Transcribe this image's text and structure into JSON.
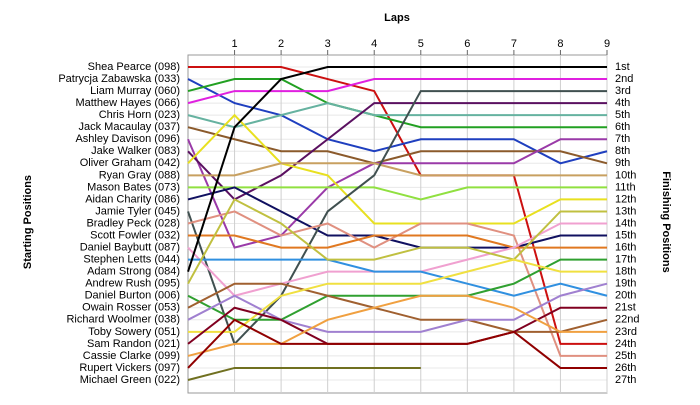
{
  "chart_data": {
    "type": "bump",
    "title": "Laps",
    "y_label_left": "Starting Positions",
    "y_label_right": "Finishing Positions",
    "x": [
      0,
      1,
      2,
      3,
      4,
      5,
      6,
      7,
      8,
      9
    ],
    "xlim": [
      0,
      9
    ],
    "xticks": [
      1,
      2,
      3,
      4,
      5,
      6,
      7,
      8,
      9
    ],
    "ylim": [
      1,
      27
    ],
    "yticks": [
      {
        "value": 1,
        "label": "1st"
      },
      {
        "value": 2,
        "label": "2nd"
      },
      {
        "value": 3,
        "label": "3rd"
      },
      {
        "value": 4,
        "label": "4th"
      },
      {
        "value": 5,
        "label": "5th"
      },
      {
        "value": 6,
        "label": "6th"
      },
      {
        "value": 7,
        "label": "7th"
      },
      {
        "value": 8,
        "label": "8th"
      },
      {
        "value": 9,
        "label": "9th"
      },
      {
        "value": 10,
        "label": "10th"
      },
      {
        "value": 11,
        "label": "11th"
      },
      {
        "value": 12,
        "label": "12th"
      },
      {
        "value": 13,
        "label": "13th"
      },
      {
        "value": 14,
        "label": "14th"
      },
      {
        "value": 15,
        "label": "15th"
      },
      {
        "value": 16,
        "label": "16th"
      },
      {
        "value": 17,
        "label": "17th"
      },
      {
        "value": 18,
        "label": "18th"
      },
      {
        "value": 19,
        "label": "19th"
      },
      {
        "value": 20,
        "label": "20th"
      },
      {
        "value": 21,
        "label": "21st"
      },
      {
        "value": 22,
        "label": "22nd"
      },
      {
        "value": 23,
        "label": "23rd"
      },
      {
        "value": 24,
        "label": "24th"
      },
      {
        "value": 25,
        "label": "25th"
      },
      {
        "value": 26,
        "label": "26th"
      },
      {
        "value": 27,
        "label": "27th"
      }
    ],
    "grid": true,
    "series": [
      {
        "name": "Shea Pearce (098)",
        "color": "#cc1010",
        "values": [
          1,
          1,
          1,
          2,
          3,
          10,
          10,
          10,
          24,
          24
        ]
      },
      {
        "name": "Patrycja Zabawska (033)",
        "color": "#1f3fbf",
        "values": [
          2,
          4,
          5,
          7,
          8,
          7,
          7,
          7,
          9,
          8
        ]
      },
      {
        "name": "Liam Murray (060)",
        "color": "#22a022",
        "values": [
          3,
          2,
          2,
          4,
          5,
          6,
          6,
          6,
          6,
          6
        ]
      },
      {
        "name": "Matthew Hayes (066)",
        "color": "#e020e0",
        "values": [
          4,
          3,
          3,
          3,
          2,
          2,
          2,
          2,
          2,
          2
        ]
      },
      {
        "name": "Chris Horn (023)",
        "color": "#66b2a0",
        "values": [
          5,
          6,
          5,
          4,
          5,
          5,
          5,
          5,
          5,
          5
        ]
      },
      {
        "name": "Jack Macaulay (037)",
        "color": "#8b5a2b",
        "values": [
          6,
          7,
          8,
          8,
          9,
          8,
          8,
          8,
          8,
          9
        ]
      },
      {
        "name": "Ashley Davison (096)",
        "color": "#9a3aa8",
        "values": [
          7,
          16,
          15,
          11,
          9,
          9,
          9,
          9,
          7,
          7
        ]
      },
      {
        "name": "Jake Walker (083)",
        "color": "#5a1060",
        "values": [
          8,
          12,
          10,
          7,
          4,
          4,
          4,
          4,
          4,
          4
        ]
      },
      {
        "name": "Oliver Graham (042)",
        "color": "#e8e020",
        "values": [
          9,
          5,
          9,
          10,
          14,
          14,
          14,
          14,
          12,
          12
        ]
      },
      {
        "name": "Ryan Gray (088)",
        "color": "#c8a060",
        "values": [
          10,
          10,
          9,
          9,
          9,
          10,
          10,
          10,
          10,
          10
        ]
      },
      {
        "name": "Mason Bates (073)",
        "color": "#90e040",
        "values": [
          11,
          11,
          11,
          11,
          11,
          12,
          11,
          11,
          11,
          11
        ]
      },
      {
        "name": "Aidan Charity (086)",
        "color": "#101060",
        "values": [
          12,
          11,
          13,
          15,
          15,
          16,
          16,
          16,
          15,
          15
        ]
      },
      {
        "name": "Jamie Tyler (045)",
        "color": "#405050",
        "values": [
          13,
          24,
          20,
          13,
          10,
          3,
          3,
          3,
          3,
          3
        ]
      },
      {
        "name": "Bradley Peck (028)",
        "color": "#e09080",
        "values": [
          14,
          13,
          15,
          14,
          16,
          14,
          14,
          15,
          25,
          25
        ]
      },
      {
        "name": "Scott Fowler (032)",
        "color": "#e07820",
        "values": [
          15,
          15,
          16,
          16,
          15,
          15,
          15,
          16,
          16,
          16
        ]
      },
      {
        "name": "Daniel Baybutt (087)",
        "color": "#f0a0d0",
        "values": [
          16,
          20,
          19,
          18,
          18,
          18,
          17,
          16,
          14,
          14
        ]
      },
      {
        "name": "Stephen Letts (044)",
        "color": "#3090e0",
        "values": [
          17,
          17,
          17,
          17,
          18,
          18,
          19,
          20,
          19,
          20
        ]
      },
      {
        "name": "Adam Strong (084)",
        "color": "#000000",
        "values": [
          18,
          6,
          2,
          1,
          1,
          1,
          1,
          1,
          1,
          1
        ]
      },
      {
        "name": "Andrew Rush (095)",
        "color": "#c0c040",
        "values": [
          19,
          12,
          14,
          17,
          17,
          16,
          16,
          17,
          13,
          13
        ]
      },
      {
        "name": "Daniel Burton (006)",
        "color": "#30a030",
        "values": [
          20,
          22,
          22,
          20,
          20,
          20,
          20,
          19,
          17,
          17
        ]
      },
      {
        "name": "Owain Rosser (053)",
        "color": "#a06030",
        "values": [
          21,
          19,
          19,
          20,
          21,
          22,
          22,
          23,
          23,
          22
        ]
      },
      {
        "name": "Richard Woolmer (038)",
        "color": "#a080d0",
        "values": [
          22,
          20,
          22,
          23,
          23,
          23,
          22,
          22,
          20,
          19
        ]
      },
      {
        "name": "Toby Sowery (051)",
        "color": "#f0e040",
        "values": [
          23,
          23,
          20,
          19,
          19,
          19,
          18,
          17,
          18,
          18
        ]
      },
      {
        "name": "Sam Randon (021)",
        "color": "#800020",
        "values": [
          24,
          21,
          22,
          24,
          24,
          24,
          24,
          23,
          21,
          21
        ]
      },
      {
        "name": "Cassie Clarke (099)",
        "color": "#f0a040",
        "values": [
          25,
          24,
          24,
          22,
          21,
          20,
          20,
          21,
          23,
          23
        ]
      },
      {
        "name": "Rupert Vickers (097)",
        "color": "#900000",
        "values": [
          26,
          22,
          24,
          24,
          24,
          24,
          24,
          23,
          26,
          26
        ]
      },
      {
        "name": "Michael Green (022)",
        "color": "#707020",
        "values": [
          27,
          26,
          26,
          26,
          26,
          26,
          null,
          null,
          null,
          null
        ]
      }
    ]
  }
}
